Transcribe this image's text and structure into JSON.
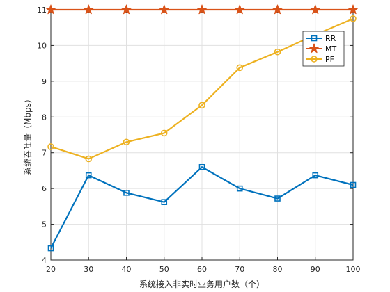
{
  "chart_data": {
    "type": "line",
    "title": "",
    "xlabel": "系统接入非实时业务用户数（个）",
    "ylabel": "系统吞吐量（Mbps）",
    "x": [
      20,
      30,
      40,
      50,
      60,
      70,
      80,
      90,
      100
    ],
    "xlim": [
      20,
      100
    ],
    "ylim": [
      4,
      11
    ],
    "xticks": [
      "20",
      "30",
      "40",
      "50",
      "60",
      "70",
      "80",
      "90",
      "100"
    ],
    "yticks": [
      "4",
      "5",
      "6",
      "7",
      "8",
      "9",
      "10",
      "11"
    ],
    "grid": true,
    "legend_position": "top-right",
    "series": [
      {
        "name": "RR",
        "color": "#0072BD",
        "marker": "square",
        "values": [
          4.33,
          6.37,
          5.88,
          5.62,
          6.6,
          6.0,
          5.72,
          6.37,
          6.1
        ]
      },
      {
        "name": "MT",
        "color": "#D95319",
        "marker": "star",
        "values": [
          11,
          11,
          11,
          11,
          11,
          11,
          11,
          11,
          11
        ]
      },
      {
        "name": "PF",
        "color": "#EDB120",
        "marker": "circle",
        "values": [
          7.17,
          6.83,
          7.3,
          7.55,
          8.33,
          9.38,
          9.82,
          10.3,
          10.75
        ]
      }
    ]
  }
}
